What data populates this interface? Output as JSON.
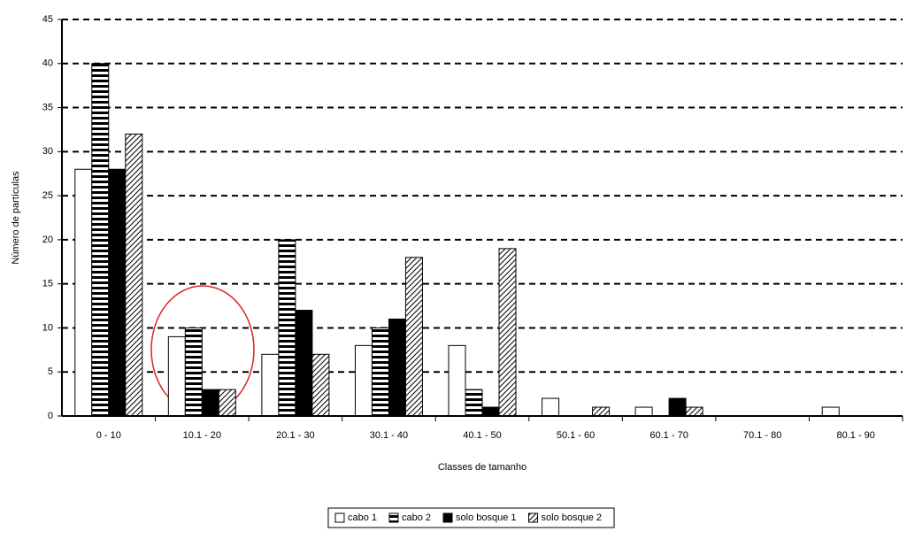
{
  "chart_data": {
    "type": "bar",
    "x_label": "Classes de tamanho",
    "y_label": "Número de partículas",
    "categories": [
      "0 - 10",
      "10.1 - 20",
      "20.1 - 30",
      "30.1 - 40",
      "40.1 - 50",
      "50.1 - 60",
      "60.1 - 70",
      "70.1 - 80",
      "80.1 - 90"
    ],
    "series": [
      {
        "name": "cabo 1",
        "color": "#000000",
        "pattern": "none",
        "values": [
          28,
          9,
          7,
          8,
          8,
          2,
          1,
          0,
          1
        ]
      },
      {
        "name": "cabo 2",
        "color": "#000000",
        "pattern": "horizontal",
        "values": [
          40,
          10,
          20,
          10,
          3,
          0,
          0,
          0,
          0
        ]
      },
      {
        "name": "solo bosque 1",
        "color": "#000000",
        "pattern": "solid",
        "values": [
          28,
          3,
          12,
          11,
          1,
          0,
          2,
          0,
          0
        ]
      },
      {
        "name": "solo bosque 2",
        "color": "#000000",
        "pattern": "diagonal",
        "values": [
          32,
          3,
          7,
          18,
          19,
          1,
          1,
          0,
          0
        ]
      }
    ],
    "ylim": [
      0,
      45
    ],
    "yticks": [
      0,
      5,
      10,
      15,
      20,
      25,
      30,
      35,
      40,
      45
    ],
    "grid": true,
    "legend": "bottom"
  }
}
